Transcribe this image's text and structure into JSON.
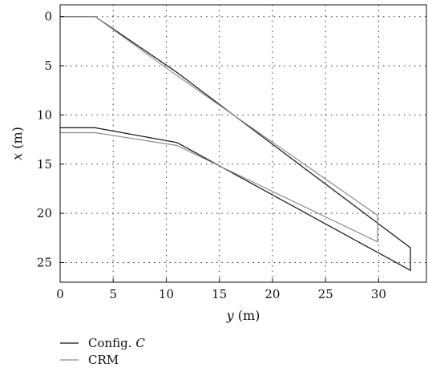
{
  "chart_data": {
    "type": "line",
    "title": "",
    "xlabel_var": "y",
    "xlabel_unit": " (m)",
    "ylabel_var": "x",
    "ylabel_unit": " (m)",
    "xlim": [
      0,
      34.5
    ],
    "ylim": [
      27,
      -1.2
    ],
    "y_inverted": true,
    "x_ticks": [
      0,
      5,
      10,
      15,
      20,
      25,
      30
    ],
    "y_ticks": [
      0,
      5,
      10,
      15,
      20,
      25
    ],
    "grid": true,
    "legend_position": "bottom-left",
    "series": [
      {
        "name": "Config. C",
        "legend_prefix": "Config. ",
        "legend_var": "C",
        "color": "#111111",
        "points": [
          [
            0,
            0
          ],
          [
            3.3,
            0
          ],
          [
            10.9,
            5.6
          ],
          [
            33,
            23.5
          ],
          [
            33,
            25.8
          ],
          [
            11,
            12.8
          ],
          [
            3.3,
            11.3
          ],
          [
            0,
            11.3
          ]
        ]
      },
      {
        "name": "CRM",
        "legend_prefix": "CRM",
        "legend_var": "",
        "color": "#8c8c8c",
        "points": [
          [
            0,
            0
          ],
          [
            3.3,
            0
          ],
          [
            11,
            6.0
          ],
          [
            29.9,
            20.2
          ],
          [
            29.9,
            22.9
          ],
          [
            11,
            13.1
          ],
          [
            3.3,
            11.8
          ],
          [
            0,
            11.8
          ]
        ]
      }
    ]
  }
}
